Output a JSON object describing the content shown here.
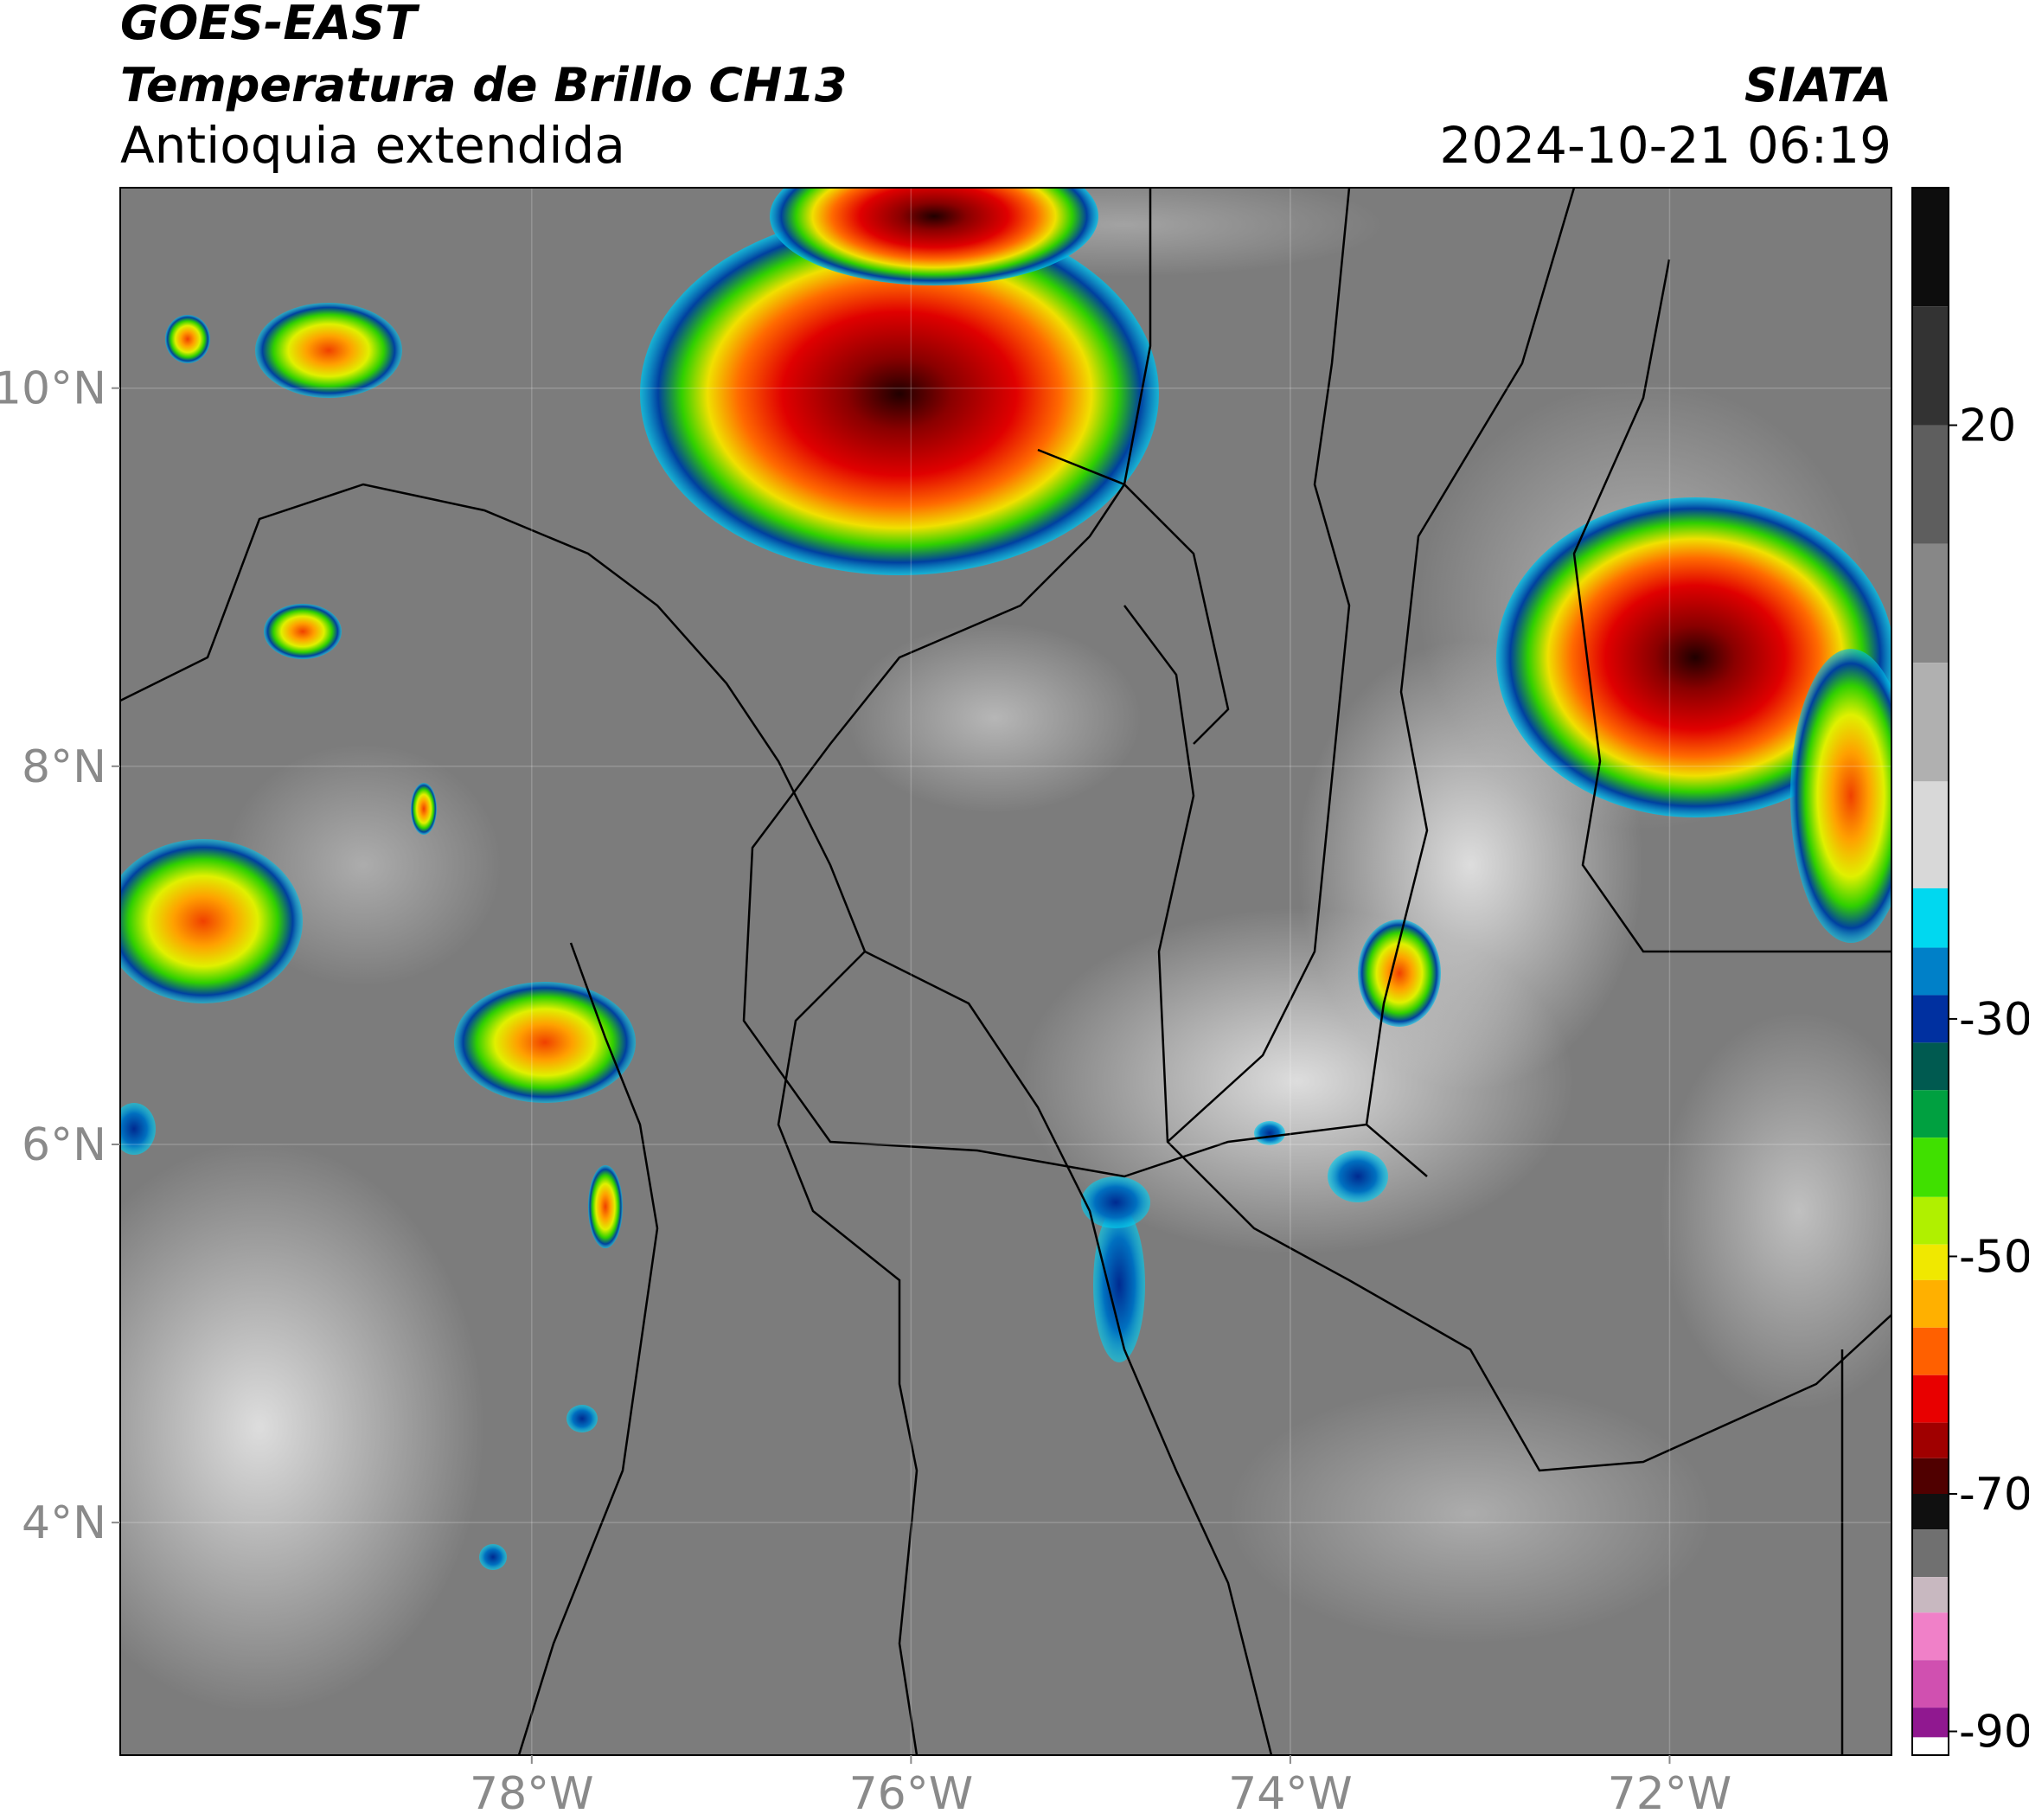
{
  "header": {
    "satellite": "GOES-EAST",
    "product": "Temperatura de Brillo CH13",
    "region": "Antioquia extendida",
    "source": "SIATA",
    "datetime": "2024-10-21 06:19"
  },
  "map": {
    "xlim": [
      -80.17,
      -70.83
    ],
    "ylim": [
      2.77,
      11.06
    ],
    "xticks": [
      {
        "value": -78,
        "label": "78°W"
      },
      {
        "value": -76,
        "label": "76°W"
      },
      {
        "value": -74,
        "label": "74°W"
      },
      {
        "value": -72,
        "label": "72°W"
      }
    ],
    "yticks": [
      {
        "value": 4,
        "label": "4°N"
      },
      {
        "value": 6,
        "label": "6°N"
      },
      {
        "value": 8,
        "label": "8°N"
      },
      {
        "value": 10,
        "label": "10°N"
      }
    ],
    "grid": true
  },
  "colorbar": {
    "lim": [
      -92,
      40
    ],
    "ticks": [
      20,
      -30,
      -50,
      -70,
      -90
    ],
    "stops": [
      {
        "value": 40,
        "color": "#0d0d0d"
      },
      {
        "value": 30,
        "color": "#333333"
      },
      {
        "value": 20,
        "color": "#5e5e5e"
      },
      {
        "value": 10,
        "color": "#878787"
      },
      {
        "value": 0,
        "color": "#b0b0b0"
      },
      {
        "value": -10,
        "color": "#d8d8d8"
      },
      {
        "value": -19,
        "color": "#00d8f0"
      },
      {
        "value": -24,
        "color": "#0080c8"
      },
      {
        "value": -28,
        "color": "#0030a0"
      },
      {
        "value": -32,
        "color": "#005a50"
      },
      {
        "value": -36,
        "color": "#00a040"
      },
      {
        "value": -40,
        "color": "#40e000"
      },
      {
        "value": -45,
        "color": "#b0f000"
      },
      {
        "value": -49,
        "color": "#f0e800"
      },
      {
        "value": -52,
        "color": "#ffb000"
      },
      {
        "value": -56,
        "color": "#ff6000"
      },
      {
        "value": -60,
        "color": "#e80000"
      },
      {
        "value": -64,
        "color": "#a00000"
      },
      {
        "value": -67,
        "color": "#500000"
      },
      {
        "value": -70,
        "color": "#101010"
      },
      {
        "value": -73,
        "color": "#707070"
      },
      {
        "value": -77,
        "color": "#c8b8c0"
      },
      {
        "value": -80,
        "color": "#f080c8"
      },
      {
        "value": -84,
        "color": "#d050b0"
      },
      {
        "value": -88,
        "color": "#901890"
      },
      {
        "value": -90.5,
        "color": "#ffffff"
      }
    ]
  }
}
